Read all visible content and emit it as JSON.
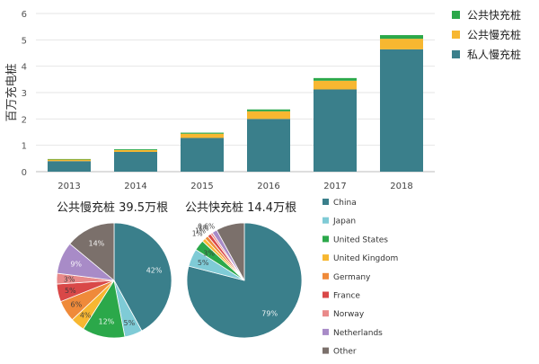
{
  "chart_data": [
    {
      "type": "bar",
      "stacked": true,
      "categories": [
        "2013",
        "2014",
        "2015",
        "2016",
        "2017",
        "2018"
      ],
      "ylabel": "百万充电桩",
      "ylim": [
        0,
        6
      ],
      "yticks": [
        "0",
        "1",
        "2",
        "3",
        "4",
        "5",
        "6"
      ],
      "grid": true,
      "legend_position": "top-right",
      "series": [
        {
          "name": "私人慢充桩",
          "color": "#3A7F8B",
          "values": [
            0.4,
            0.75,
            1.28,
            2.0,
            3.12,
            4.64
          ]
        },
        {
          "name": "公共慢充桩",
          "color": "#F7B731",
          "values": [
            0.06,
            0.07,
            0.16,
            0.29,
            0.33,
            0.4
          ]
        },
        {
          "name": "公共快充桩",
          "color": "#2BA84A",
          "values": [
            0.02,
            0.03,
            0.04,
            0.07,
            0.1,
            0.14
          ]
        }
      ]
    },
    {
      "type": "pie",
      "title": "公共慢充桩 39.5万根",
      "slices": [
        {
          "label": "China",
          "value": 42,
          "display": "42%"
        },
        {
          "label": "Japan",
          "value": 5,
          "display": "5%"
        },
        {
          "label": "United States",
          "value": 12,
          "display": "12%"
        },
        {
          "label": "United Kingdom",
          "value": 4,
          "display": "4%"
        },
        {
          "label": "Germany",
          "value": 6,
          "display": "6%"
        },
        {
          "label": "France",
          "value": 5,
          "display": "5%"
        },
        {
          "label": "Norway",
          "value": 3,
          "display": "3%"
        },
        {
          "label": "Netherlands",
          "value": 9,
          "display": "9%"
        },
        {
          "label": "Other",
          "value": 14,
          "display": "14%"
        }
      ]
    },
    {
      "type": "pie",
      "title": "公共快充桩 14.4万根",
      "slices": [
        {
          "label": "China",
          "value": 79,
          "display": "79%"
        },
        {
          "label": "Japan",
          "value": 5,
          "display": "5%"
        },
        {
          "label": "United States",
          "value": 3,
          "display": "3%"
        },
        {
          "label": "United Kingdom",
          "value": 1,
          "display": "1%"
        },
        {
          "label": "Germany",
          "value": 1,
          "display": "1%"
        },
        {
          "label": "France",
          "value": 1,
          "display": "1%"
        },
        {
          "label": "Norway",
          "value": 0.6,
          "display": "0.6%"
        },
        {
          "label": "Netherlands",
          "value": 1.4,
          "display": ""
        },
        {
          "label": "Other",
          "value": 8,
          "display": ""
        }
      ]
    }
  ],
  "pie_legend": [
    {
      "label": "China",
      "color": "#3A7F8B"
    },
    {
      "label": "Japan",
      "color": "#7FCBD6"
    },
    {
      "label": "United States",
      "color": "#2BA84A"
    },
    {
      "label": "United Kingdom",
      "color": "#F7B731"
    },
    {
      "label": "Germany",
      "color": "#EF8A3A"
    },
    {
      "label": "France",
      "color": "#D94848"
    },
    {
      "label": "Norway",
      "color": "#E98A8A"
    },
    {
      "label": "Netherlands",
      "color": "#A88BC7"
    },
    {
      "label": "Other",
      "color": "#7B706B"
    }
  ]
}
